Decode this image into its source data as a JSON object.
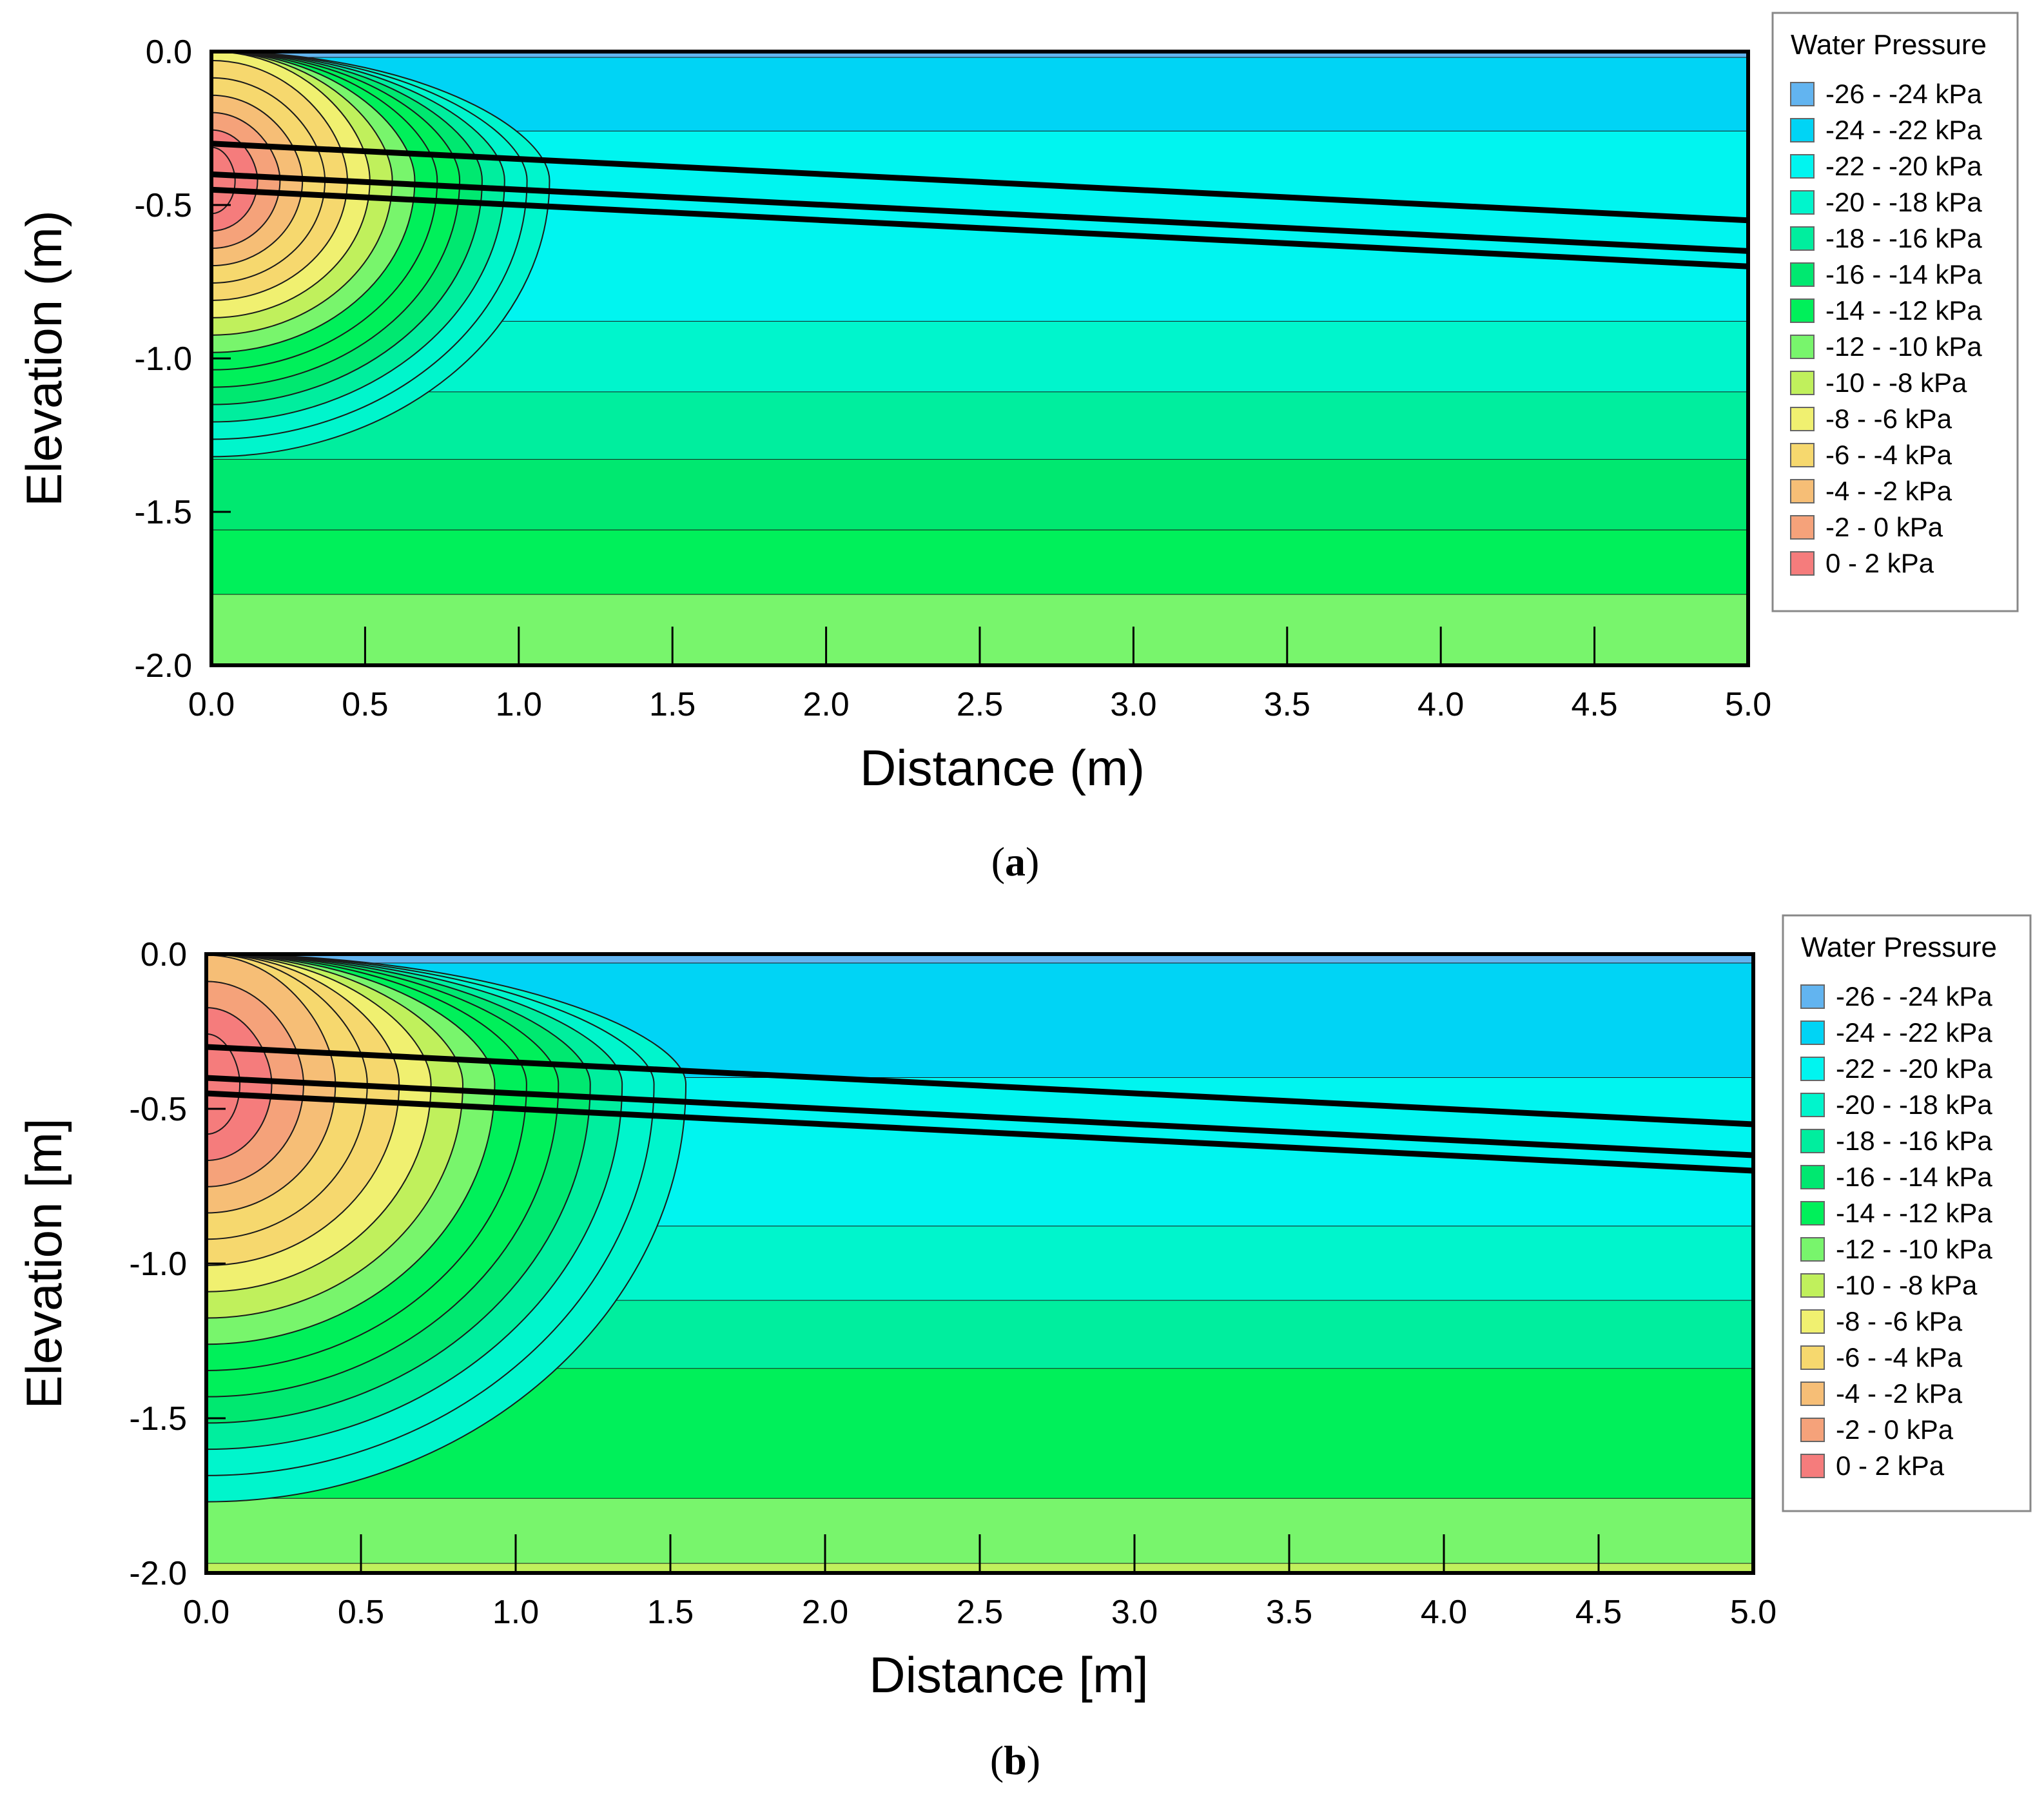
{
  "chart_data": [
    {
      "type": "heatmap",
      "panel": "a",
      "caption": "a",
      "title": "",
      "xlabel": "Distance (m)",
      "ylabel": "Elevation (m)",
      "xlim": [
        0.0,
        5.0
      ],
      "ylim": [
        -2.0,
        0.0
      ],
      "xticks": [
        "0.0",
        "0.5",
        "1.0",
        "1.5",
        "2.0",
        "2.5",
        "3.0",
        "3.5",
        "4.0",
        "4.5",
        "5.0"
      ],
      "yticks": [
        "0.0",
        "-0.5",
        "-1.0",
        "-1.5",
        "-2.0"
      ],
      "legend": {
        "title": "Water Pressure",
        "position": "right",
        "entries": [
          {
            "label": "-26 - -24 kPa",
            "color": "#62b4f0"
          },
          {
            "label": "-24 - -22 kPa",
            "color": "#00d4f5"
          },
          {
            "label": "-22 - -20 kPa",
            "color": "#00f5f0"
          },
          {
            "label": "-20 - -18 kPa",
            "color": "#00f5cc"
          },
          {
            "label": "-18 - -16 kPa",
            "color": "#00ee9e"
          },
          {
            "label": "-16 - -14 kPa",
            "color": "#00e870"
          },
          {
            "label": "-14 - -12 kPa",
            "color": "#00f05a"
          },
          {
            "label": "-12 - -10 kPa",
            "color": "#78f56c"
          },
          {
            "label": "-10 - -8 kPa",
            "color": "#c0f05c"
          },
          {
            "label": "-8 - -6 kPa",
            "color": "#f0f070"
          },
          {
            "label": "-6 - -4 kPa",
            "color": "#f6d86e"
          },
          {
            "label": "-4 - -2 kPa",
            "color": "#f6be76"
          },
          {
            "label": "-2 - 0 kPa",
            "color": "#f5a27a"
          },
          {
            "label": "0 - 2 kPa",
            "color": "#f57c7c"
          }
        ]
      },
      "layers_top_to_bottom": [
        {
          "y_bottom": -0.02,
          "color": "#62b4f0"
        },
        {
          "y_bottom": -0.26,
          "color": "#00d4f5"
        },
        {
          "y_bottom": -0.88,
          "color": "#00f5f0"
        },
        {
          "y_bottom": -1.11,
          "color": "#00f5cc"
        },
        {
          "y_bottom": -1.33,
          "color": "#00ee9e"
        },
        {
          "y_bottom": -1.56,
          "color": "#00e870"
        },
        {
          "y_bottom": -1.77,
          "color": "#00f05a"
        },
        {
          "y_bottom": -2.0,
          "color": "#78f56c"
        }
      ],
      "bulb": {
        "x_extent": 1.1,
        "y_center": -0.42,
        "radius_y": 0.9,
        "contours": 15
      },
      "boundary_lines": [
        {
          "x": [
            0.0,
            5.0
          ],
          "y": [
            -0.3,
            -0.55
          ]
        },
        {
          "x": [
            0.0,
            5.0
          ],
          "y": [
            -0.4,
            -0.65
          ]
        },
        {
          "x": [
            0.0,
            5.0
          ],
          "y": [
            -0.45,
            -0.7
          ]
        }
      ]
    },
    {
      "type": "heatmap",
      "panel": "b",
      "caption": "b",
      "title": "",
      "xlabel": "Distance [m]",
      "ylabel": "Elevation [m]",
      "xlim": [
        0.0,
        5.0
      ],
      "ylim": [
        -2.0,
        0.0
      ],
      "xticks": [
        "0.0",
        "0.5",
        "1.0",
        "1.5",
        "2.0",
        "2.5",
        "3.0",
        "3.5",
        "4.0",
        "4.5",
        "5.0"
      ],
      "yticks": [
        "0.0",
        "-0.5",
        "-1.0",
        "-1.5",
        "-2.0"
      ],
      "legend": {
        "title": "Water Pressure",
        "position": "right",
        "entries": [
          {
            "label": "-26 - -24 kPa",
            "color": "#62b4f0"
          },
          {
            "label": "-24 - -22 kPa",
            "color": "#00d4f5"
          },
          {
            "label": "-22 - -20 kPa",
            "color": "#00f5f0"
          },
          {
            "label": "-20 - -18 kPa",
            "color": "#00f5cc"
          },
          {
            "label": "-18 - -16 kPa",
            "color": "#00ee9e"
          },
          {
            "label": "-16 - -14 kPa",
            "color": "#00e870"
          },
          {
            "label": "-14 - -12 kPa",
            "color": "#00f05a"
          },
          {
            "label": "-12 - -10 kPa",
            "color": "#78f56c"
          },
          {
            "label": "-10 - -8 kPa",
            "color": "#c0f05c"
          },
          {
            "label": "-8 - -6 kPa",
            "color": "#f0f070"
          },
          {
            "label": "-6 - -4 kPa",
            "color": "#f6d86e"
          },
          {
            "label": "-4 - -2 kPa",
            "color": "#f6be76"
          },
          {
            "label": "-2 - 0 kPa",
            "color": "#f5a27a"
          },
          {
            "label": "0 - 2 kPa",
            "color": "#f57c7c"
          }
        ]
      },
      "layers_top_to_bottom": [
        {
          "y_bottom": -0.03,
          "color": "#62b4f0"
        },
        {
          "y_bottom": -0.4,
          "color": "#00d4f5"
        },
        {
          "y_bottom": -0.88,
          "color": "#00f5f0"
        },
        {
          "y_bottom": -1.12,
          "color": "#00f5cc"
        },
        {
          "y_bottom": -1.34,
          "color": "#00ee9e"
        },
        {
          "y_bottom": -1.76,
          "color": "#00f05a"
        },
        {
          "y_bottom": -1.97,
          "color": "#78f56c"
        },
        {
          "y_bottom": -2.0,
          "color": "#c0f05c"
        }
      ],
      "bulb": {
        "x_extent": 1.55,
        "y_center": -0.42,
        "radius_y": 1.35,
        "contours": 15
      },
      "boundary_lines": [
        {
          "x": [
            0.0,
            5.0
          ],
          "y": [
            -0.3,
            -0.55
          ]
        },
        {
          "x": [
            0.0,
            5.0
          ],
          "y": [
            -0.4,
            -0.65
          ]
        },
        {
          "x": [
            0.0,
            5.0
          ],
          "y": [
            -0.45,
            -0.7
          ]
        }
      ]
    }
  ]
}
